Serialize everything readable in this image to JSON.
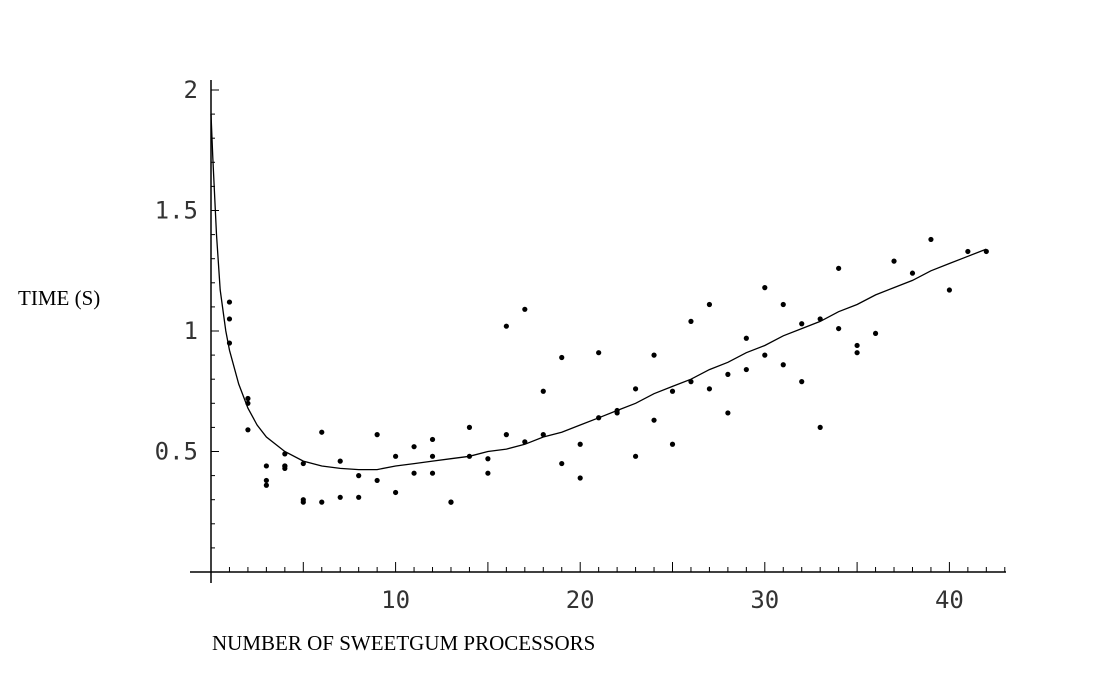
{
  "chart_data": {
    "type": "scatter",
    "title": "",
    "xlabel": "NUMBER OF SWEETGUM PROCESSORS",
    "ylabel": "TIME (S)",
    "xlim": [
      0,
      43
    ],
    "ylim": [
      0,
      2
    ],
    "xticks": [
      10,
      20,
      30,
      40
    ],
    "xtick_labels": [
      "10",
      "20",
      "30",
      "40"
    ],
    "yticks": [
      0.5,
      1,
      1.5,
      2
    ],
    "ytick_labels": [
      "0.5",
      "1",
      "1.5",
      "2"
    ],
    "grid": false,
    "legend": "none",
    "colors": {
      "points": "#000000",
      "curve": "#000000",
      "axes": "#000000"
    },
    "series": [
      {
        "kind": "points",
        "x": [
          1,
          1,
          1,
          2,
          2,
          2,
          3,
          3,
          3,
          4,
          4,
          4,
          4,
          5,
          5,
          5,
          6,
          6,
          7,
          7,
          8,
          8,
          9,
          9,
          10,
          10,
          11,
          11,
          12,
          12,
          12,
          13,
          13,
          14,
          14,
          15,
          15,
          16,
          16,
          17,
          17,
          18,
          18,
          19,
          19,
          20,
          20,
          21,
          21,
          22,
          22,
          23,
          23,
          24,
          24,
          25,
          25,
          26,
          26,
          27,
          27,
          28,
          28,
          29,
          29,
          30,
          30,
          31,
          31,
          32,
          32,
          33,
          33,
          34,
          34,
          35,
          35,
          36,
          37,
          38,
          39,
          40,
          41,
          42
        ],
        "y": [
          1.12,
          1.05,
          0.95,
          0.72,
          0.7,
          0.59,
          0.44,
          0.38,
          0.36,
          0.49,
          0.44,
          0.43,
          0.44,
          0.45,
          0.3,
          0.29,
          0.58,
          0.29,
          0.46,
          0.31,
          0.4,
          0.31,
          0.57,
          0.38,
          0.48,
          0.33,
          0.52,
          0.41,
          0.55,
          0.48,
          0.41,
          0.29,
          0.29,
          0.6,
          0.48,
          0.47,
          0.41,
          1.02,
          0.57,
          1.09,
          0.54,
          0.75,
          0.57,
          0.89,
          0.45,
          0.53,
          0.39,
          0.91,
          0.64,
          0.67,
          0.66,
          0.76,
          0.48,
          0.9,
          0.63,
          0.75,
          0.53,
          1.04,
          0.79,
          1.11,
          0.76,
          0.82,
          0.66,
          0.97,
          0.84,
          1.18,
          0.9,
          1.11,
          0.86,
          1.03,
          0.79,
          1.05,
          0.6,
          1.26,
          1.01,
          0.94,
          0.91,
          0.99,
          1.29,
          1.24,
          1.38,
          1.17,
          1.33,
          1.33
        ]
      },
      {
        "kind": "fitted-curve",
        "x": [
          0,
          0.1,
          0.3,
          0.5,
          0.8,
          1,
          1.5,
          2,
          2.5,
          3,
          4,
          5,
          6,
          7,
          8,
          9,
          10,
          11,
          12,
          13,
          14,
          15,
          16,
          17,
          18,
          19,
          20,
          21,
          22,
          23,
          24,
          25,
          26,
          27,
          28,
          29,
          30,
          31,
          32,
          33,
          34,
          35,
          36,
          37,
          38,
          39,
          40,
          41,
          42
        ],
        "y": [
          1.9,
          1.72,
          1.4,
          1.17,
          1.0,
          0.92,
          0.78,
          0.68,
          0.61,
          0.56,
          0.5,
          0.46,
          0.44,
          0.43,
          0.425,
          0.425,
          0.44,
          0.45,
          0.46,
          0.47,
          0.48,
          0.5,
          0.51,
          0.53,
          0.56,
          0.58,
          0.61,
          0.64,
          0.67,
          0.7,
          0.74,
          0.77,
          0.8,
          0.84,
          0.87,
          0.91,
          0.94,
          0.98,
          1.01,
          1.04,
          1.08,
          1.11,
          1.15,
          1.18,
          1.21,
          1.25,
          1.28,
          1.31,
          1.34
        ]
      }
    ]
  }
}
